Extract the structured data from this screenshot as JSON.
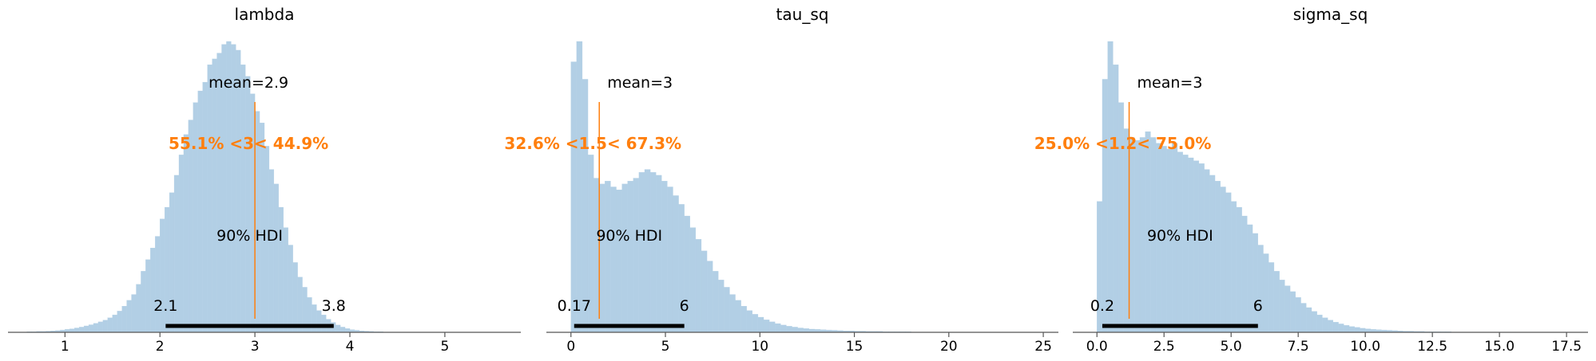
{
  "chart_data": [
    {
      "type": "histogram",
      "title": "lambda",
      "xlim": [
        0.4,
        5.8
      ],
      "ymax": 1.0,
      "bins": {
        "start": 0.6,
        "width": 0.05,
        "heights": [
          0.002,
          0.002,
          0.003,
          0.003,
          0.004,
          0.005,
          0.006,
          0.008,
          0.01,
          0.012,
          0.015,
          0.018,
          0.022,
          0.026,
          0.031,
          0.036,
          0.042,
          0.05,
          0.06,
          0.073,
          0.09,
          0.11,
          0.13,
          0.165,
          0.21,
          0.25,
          0.29,
          0.33,
          0.39,
          0.43,
          0.48,
          0.54,
          0.61,
          0.68,
          0.73,
          0.79,
          0.83,
          0.86,
          0.92,
          0.94,
          0.96,
          0.99,
          1.0,
          0.99,
          0.97,
          0.92,
          0.88,
          0.82,
          0.76,
          0.72,
          0.64,
          0.56,
          0.51,
          0.43,
          0.36,
          0.3,
          0.24,
          0.19,
          0.155,
          0.12,
          0.095,
          0.075,
          0.06,
          0.045,
          0.034,
          0.025,
          0.018,
          0.013,
          0.009,
          0.007,
          0.005,
          0.004,
          0.003,
          0.002,
          0.002,
          0.001,
          0.001,
          0.001,
          0.001
        ]
      },
      "mean_label": "mean=2.9",
      "ref_value": 3,
      "ref_label": "55.1% <3< 44.9%",
      "hdi_label": "90% HDI",
      "hdi": [
        2.06,
        3.83
      ],
      "hdi_low_label": "2.1",
      "hdi_high_label": "3.8",
      "xticks": [
        1,
        2,
        3,
        4,
        5
      ],
      "xtick_labels": [
        "1",
        "2",
        "3",
        "4",
        "5"
      ]
    },
    {
      "type": "histogram",
      "title": "tau_sq",
      "xlim": [
        -1.3,
        25.8
      ],
      "ymax": 1.0,
      "bins": {
        "start": 0,
        "width": 0.3,
        "heights": [
          0.93,
          1.0,
          0.87,
          0.61,
          0.53,
          0.51,
          0.52,
          0.5,
          0.49,
          0.51,
          0.52,
          0.53,
          0.55,
          0.56,
          0.55,
          0.54,
          0.52,
          0.5,
          0.47,
          0.44,
          0.4,
          0.36,
          0.32,
          0.28,
          0.245,
          0.21,
          0.18,
          0.155,
          0.13,
          0.11,
          0.09,
          0.075,
          0.062,
          0.052,
          0.043,
          0.036,
          0.03,
          0.025,
          0.021,
          0.018,
          0.015,
          0.013,
          0.011,
          0.01,
          0.009,
          0.008,
          0.007,
          0.006,
          0.005,
          0.005,
          0.004,
          0.004,
          0.003,
          0.003,
          0.003,
          0.002,
          0.002,
          0.002,
          0.002,
          0.002,
          0.001,
          0.001,
          0.001,
          0.001,
          0.001,
          0.001,
          0.001,
          0.001,
          0.001,
          0.001,
          0.001,
          0.001,
          0.001,
          0.001,
          0.001,
          0.001,
          0.001,
          0.001,
          0.001,
          0.001,
          0.001,
          0.001,
          0.001,
          0.001
        ]
      },
      "mean_label": "mean=3",
      "ref_value": 1.5,
      "ref_label": "32.6% <1.5< 67.3%",
      "hdi_label": "90% HDI",
      "hdi": [
        0.17,
        6.0
      ],
      "hdi_low_label": "0.17",
      "hdi_high_label": "6",
      "xticks": [
        0,
        5,
        10,
        15,
        20,
        25
      ],
      "xtick_labels": [
        "0",
        "5",
        "10",
        "15",
        "20",
        "25"
      ]
    },
    {
      "type": "histogram",
      "title": "sigma_sq",
      "xlim": [
        -0.9,
        18.3
      ],
      "ymax": 1.0,
      "bins": {
        "start": 0,
        "width": 0.2,
        "heights": [
          0.45,
          0.87,
          1.0,
          0.92,
          0.79,
          0.7,
          0.67,
          0.66,
          0.67,
          0.69,
          0.67,
          0.65,
          0.64,
          0.63,
          0.65,
          0.62,
          0.61,
          0.6,
          0.59,
          0.58,
          0.56,
          0.54,
          0.52,
          0.5,
          0.48,
          0.45,
          0.43,
          0.4,
          0.37,
          0.34,
          0.3,
          0.27,
          0.24,
          0.21,
          0.18,
          0.16,
          0.14,
          0.12,
          0.1,
          0.085,
          0.072,
          0.06,
          0.05,
          0.042,
          0.035,
          0.029,
          0.024,
          0.02,
          0.017,
          0.014,
          0.012,
          0.01,
          0.009,
          0.008,
          0.007,
          0.006,
          0.005,
          0.004,
          0.004,
          0.003,
          0.003,
          0.002,
          0.002,
          0.002,
          0.002,
          0.002,
          0.001,
          0.001,
          0.001,
          0.001,
          0.001,
          0.001,
          0.001,
          0.001,
          0.001,
          0.001,
          0.001,
          0.001,
          0.001,
          0.001,
          0.001,
          0.001,
          0.001,
          0.001,
          0.001,
          0.001
        ]
      },
      "mean_label": "mean=3",
      "ref_value": 1.2,
      "ref_label": "25.0% <1.2< 75.0%",
      "hdi_label": "90% HDI",
      "hdi": [
        0.2,
        6.0
      ],
      "hdi_low_label": "0.2",
      "hdi_high_label": "6",
      "xticks": [
        0,
        2.5,
        5,
        7.5,
        10,
        12.5,
        15,
        17.5
      ],
      "xtick_labels": [
        "0.0",
        "2.5",
        "5.0",
        "7.5",
        "10.0",
        "12.5",
        "15.0",
        "17.5"
      ]
    }
  ],
  "colors": {
    "bar": "#b2cfe5",
    "ref_line": "#ff7f0e",
    "ref_text": "#ff7f0e",
    "hdi_bar": "#000000",
    "axis": "#555555",
    "text": "#000000"
  }
}
